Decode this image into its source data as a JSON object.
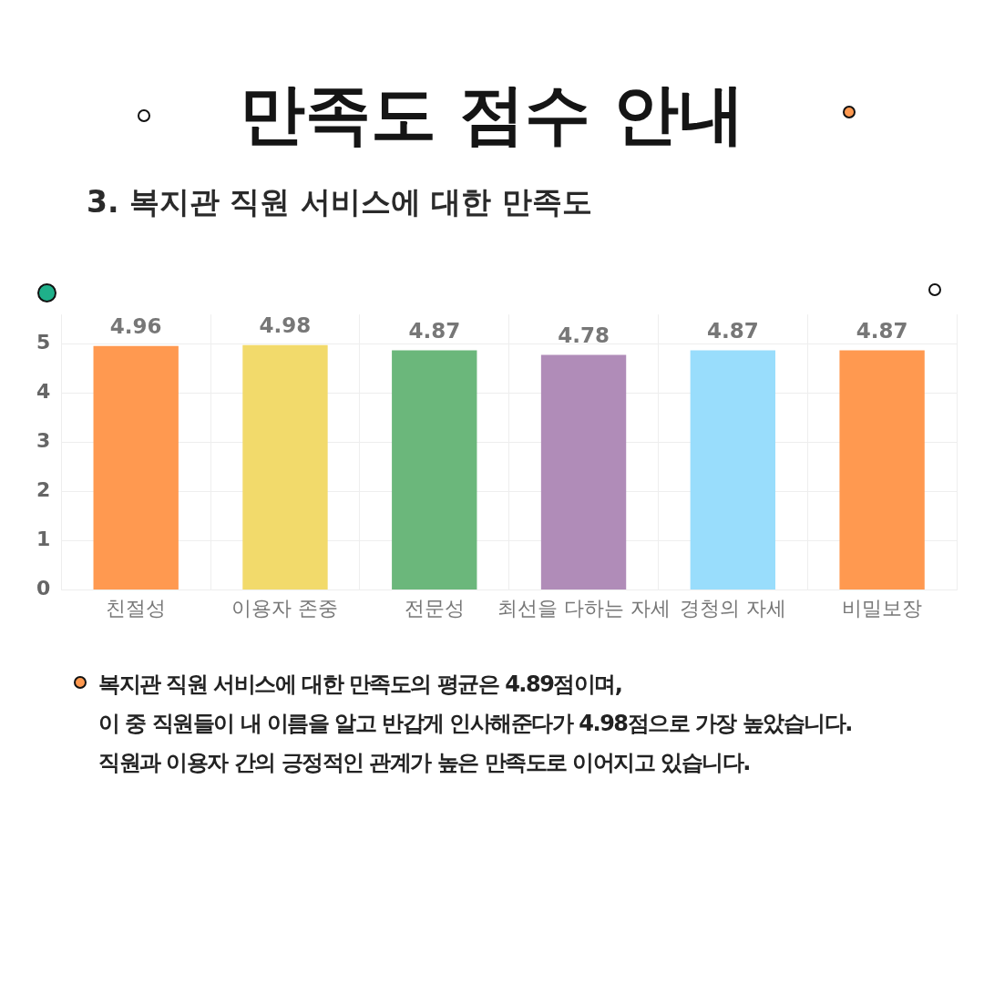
{
  "chart_data": {
    "type": "bar",
    "title": "만족도 점수 안내",
    "subtitle": "3. 복지관 직원 서비스에 대한 만족도",
    "categories": [
      "친절성",
      "이용자 존중",
      "전문성",
      "최선을 다하는 자세",
      "경청의 자세",
      "비밀보장"
    ],
    "values": [
      4.96,
      4.98,
      4.87,
      4.78,
      4.87,
      4.87
    ],
    "colors": [
      "#ff9950",
      "#f2da6b",
      "#6bb77b",
      "#b08cb8",
      "#99ddfc",
      "#ff9950"
    ],
    "ylim": [
      0,
      5.6
    ],
    "yticks": [
      0,
      1,
      2,
      3,
      4,
      5
    ],
    "grid": true,
    "data_labels": true,
    "annotations": [
      "복지관 직원 서비스에 대한  만족도의 평균은 4.89점이며,",
      "이 중 직원들이 내 이름을 알고 반갑게 인사해준다가  4.98점으로 가장 높았습니다.",
      "직원과 이용자 간의 긍정적인 관계가 높은 만족도로 이어지고 있습니다."
    ]
  }
}
